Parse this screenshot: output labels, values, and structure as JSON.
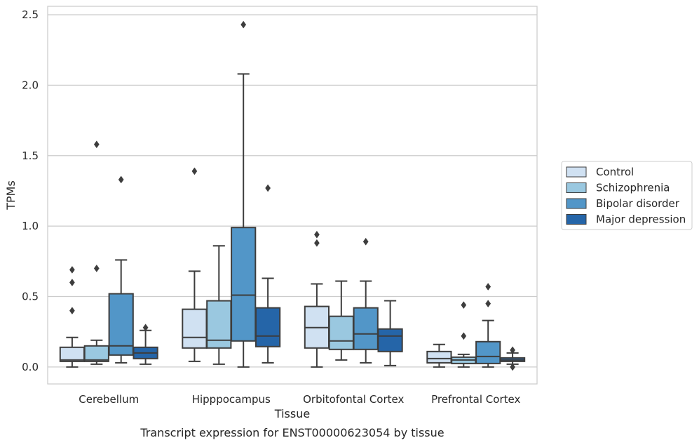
{
  "caption": "Transcript expression for ENST00000623054 by tissue",
  "chart_data": {
    "type": "box",
    "xlabel": "Tissue",
    "ylabel": "TPMs",
    "ylim": [
      -0.12,
      2.56
    ],
    "yticks": [
      0.0,
      0.5,
      1.0,
      1.5,
      2.0,
      2.5
    ],
    "ytick_labels": [
      "0.0",
      "0.5",
      "1.0",
      "1.5",
      "2.0",
      "2.5"
    ],
    "grid": "horizontal",
    "legend_position": "right",
    "categories": [
      "Cerebellum",
      "Hipppocampus",
      "Orbitofontal Cortex",
      "Prefrontal Cortex"
    ],
    "series": [
      {
        "name": "Control",
        "color": "#d0e1f2",
        "boxes": [
          {
            "whislo": 0.0,
            "q1": 0.04,
            "med": 0.05,
            "q3": 0.14,
            "whishi": 0.21,
            "fliers": [
              0.69,
              0.6,
              0.4
            ]
          },
          {
            "whislo": 0.04,
            "q1": 0.135,
            "med": 0.21,
            "q3": 0.41,
            "whishi": 0.68,
            "fliers": [
              1.39
            ]
          },
          {
            "whislo": 0.0,
            "q1": 0.135,
            "med": 0.28,
            "q3": 0.43,
            "whishi": 0.59,
            "fliers": [
              0.94,
              0.88
            ]
          },
          {
            "whislo": 0.0,
            "q1": 0.03,
            "med": 0.06,
            "q3": 0.11,
            "whishi": 0.16,
            "fliers": []
          }
        ]
      },
      {
        "name": "Schizophrenia",
        "color": "#9ac8e0",
        "boxes": [
          {
            "whislo": 0.02,
            "q1": 0.04,
            "med": 0.05,
            "q3": 0.15,
            "whishi": 0.19,
            "fliers": [
              1.58,
              0.7
            ]
          },
          {
            "whislo": 0.02,
            "q1": 0.135,
            "med": 0.19,
            "q3": 0.47,
            "whishi": 0.86,
            "fliers": []
          },
          {
            "whislo": 0.05,
            "q1": 0.125,
            "med": 0.185,
            "q3": 0.36,
            "whishi": 0.61,
            "fliers": []
          },
          {
            "whislo": 0.0,
            "q1": 0.025,
            "med": 0.05,
            "q3": 0.07,
            "whishi": 0.09,
            "fliers": [
              0.44,
              0.22
            ]
          }
        ]
      },
      {
        "name": "Bipolar disorder",
        "color": "#5296c8",
        "boxes": [
          {
            "whislo": 0.03,
            "q1": 0.085,
            "med": 0.15,
            "q3": 0.52,
            "whishi": 0.76,
            "fliers": [
              1.33
            ]
          },
          {
            "whislo": 0.0,
            "q1": 0.185,
            "med": 0.51,
            "q3": 0.99,
            "whishi": 2.08,
            "fliers": [
              2.43
            ]
          },
          {
            "whislo": 0.03,
            "q1": 0.125,
            "med": 0.235,
            "q3": 0.42,
            "whishi": 0.61,
            "fliers": [
              0.89
            ]
          },
          {
            "whislo": 0.0,
            "q1": 0.025,
            "med": 0.075,
            "q3": 0.18,
            "whishi": 0.33,
            "fliers": [
              0.57,
              0.45
            ]
          }
        ]
      },
      {
        "name": "Major depression",
        "color": "#2565a8",
        "boxes": [
          {
            "whislo": 0.02,
            "q1": 0.06,
            "med": 0.1,
            "q3": 0.14,
            "whishi": 0.26,
            "fliers": [
              0.28
            ]
          },
          {
            "whislo": 0.03,
            "q1": 0.145,
            "med": 0.22,
            "q3": 0.42,
            "whishi": 0.63,
            "fliers": [
              1.27
            ]
          },
          {
            "whislo": 0.01,
            "q1": 0.11,
            "med": 0.22,
            "q3": 0.27,
            "whishi": 0.47,
            "fliers": []
          },
          {
            "whislo": 0.02,
            "q1": 0.04,
            "med": 0.05,
            "q3": 0.065,
            "whishi": 0.1,
            "fliers": [
              0.12,
              0.0
            ]
          }
        ]
      }
    ]
  }
}
